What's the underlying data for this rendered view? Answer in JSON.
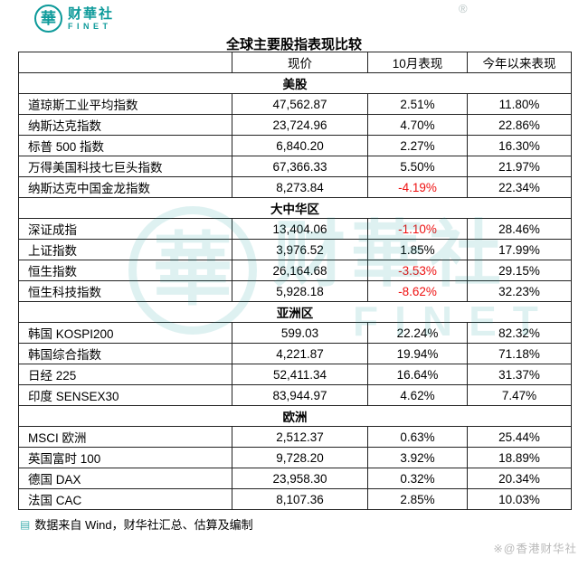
{
  "brand": {
    "logo_char": "華",
    "name_cn": "财華社",
    "name_en": "FINET"
  },
  "colors": {
    "brand_teal": "#0d9a9a",
    "negative_red": "#ee1111"
  },
  "chart_data": {
    "type": "table",
    "title": "全球主要股指表现比较",
    "columns": [
      "",
      "现价",
      "10月表现",
      "今年以来表现"
    ],
    "sections": [
      {
        "name": "美股",
        "rows": [
          [
            "道琼斯工业平均指数",
            "47,562.87",
            "2.51%",
            "11.80%"
          ],
          [
            "纳斯达克指数",
            "23,724.96",
            "4.70%",
            "22.86%"
          ],
          [
            "标普 500 指数",
            "6,840.20",
            "2.27%",
            "16.30%"
          ],
          [
            "万得美国科技七巨头指数",
            "67,366.33",
            "5.50%",
            "21.97%"
          ],
          [
            "纳斯达克中国金龙指数",
            "8,273.84",
            "-4.19%",
            "22.34%"
          ]
        ]
      },
      {
        "name": "大中华区",
        "rows": [
          [
            "深证成指",
            "13,404.06",
            "-1.10%",
            "28.46%"
          ],
          [
            "上证指数",
            "3,976.52",
            "1.85%",
            "17.99%"
          ],
          [
            "恒生指数",
            "26,164.68",
            "-3.53%",
            "29.15%"
          ],
          [
            "恒生科技指数",
            "5,928.18",
            "-8.62%",
            "32.23%"
          ]
        ]
      },
      {
        "name": "亚洲区",
        "rows": [
          [
            "韩国 KOSPI200",
            "599.03",
            "22.24%",
            "82.32%"
          ],
          [
            "韩国综合指数",
            "4,221.87",
            "19.94%",
            "71.18%"
          ],
          [
            "日经 225",
            "52,411.34",
            "16.64%",
            "31.37%"
          ],
          [
            "印度 SENSEX30",
            "83,944.97",
            "4.62%",
            "7.47%"
          ]
        ]
      },
      {
        "name": "欧洲",
        "rows": [
          [
            "MSCI 欧洲",
            "2,512.37",
            "0.63%",
            "25.44%"
          ],
          [
            "英国富时 100",
            "9,728.20",
            "3.92%",
            "18.89%"
          ],
          [
            "德国 DAX",
            "23,958.30",
            "0.32%",
            "20.34%"
          ],
          [
            "法国 CAC",
            "8,107.36",
            "2.85%",
            "10.03%"
          ]
        ]
      }
    ]
  },
  "watermark": {
    "logo_char": "華",
    "name_cn": "财華社",
    "name_en": "FINET",
    "reg_mark": "®"
  },
  "footer": {
    "source_icon": "▤",
    "source_text": "数据来自 Wind，财华社汇总、估算及编制",
    "credit": "※@香港财华社"
  }
}
